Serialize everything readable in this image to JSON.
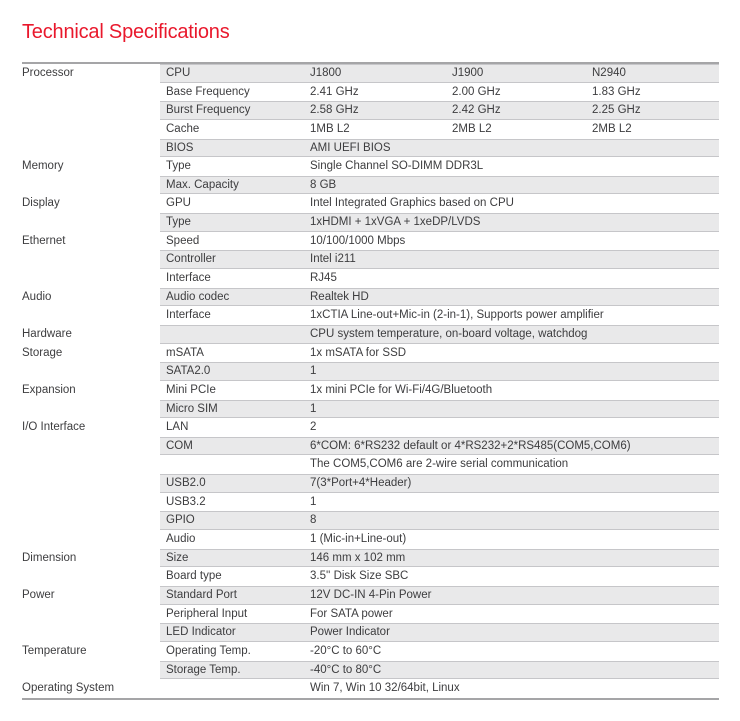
{
  "page": {
    "title": "Technical Specifications"
  },
  "colors": {
    "accent_red": "#e9182c",
    "row_stripe": "#e9e9ea",
    "row_divider": "#c6c6c9",
    "rule_gray": "#a5a5a7",
    "text": "#3d3d3f"
  },
  "table": {
    "rows": [
      {
        "category": "Processor",
        "label": "CPU",
        "values": [
          "J1800",
          "J1900",
          "N2940"
        ]
      },
      {
        "category": "",
        "label": "Base Frequency",
        "values": [
          "2.41 GHz",
          "2.00 GHz",
          "1.83 GHz"
        ]
      },
      {
        "category": "",
        "label": "Burst Frequency",
        "values": [
          "2.58 GHz",
          "2.42 GHz",
          "2.25 GHz"
        ]
      },
      {
        "category": "",
        "label": "Cache",
        "values": [
          "1MB L2",
          "2MB L2",
          "2MB L2"
        ]
      },
      {
        "category": "",
        "label": "BIOS",
        "value": "AMI UEFI BIOS"
      },
      {
        "category": "Memory",
        "label": "Type",
        "value": "Single Channel SO-DIMM DDR3L"
      },
      {
        "category": "",
        "label": "Max. Capacity",
        "value": "8 GB"
      },
      {
        "category": "Display",
        "label": "GPU",
        "value": "Intel Integrated Graphics based on CPU"
      },
      {
        "category": "",
        "label": "Type",
        "value": "1xHDMI + 1xVGA + 1xeDP/LVDS"
      },
      {
        "category": "Ethernet",
        "label": "Speed",
        "value": "10/100/1000 Mbps"
      },
      {
        "category": "",
        "label": "Controller",
        "value": "Intel i211"
      },
      {
        "category": "",
        "label": "Interface",
        "value": "RJ45"
      },
      {
        "category": "Audio",
        "label": "Audio codec",
        "value": "Realtek HD"
      },
      {
        "category": "",
        "label": "Interface",
        "value": "1xCTIA Line-out+Mic-in (2-in-1), Supports power amplifier"
      },
      {
        "category": "Hardware",
        "label": "",
        "value": "CPU system temperature, on-board voltage, watchdog"
      },
      {
        "category": "Storage",
        "label": "mSATA",
        "value": "1x mSATA for SSD"
      },
      {
        "category": "",
        "label": "SATA2.0",
        "value": "1"
      },
      {
        "category": "Expansion",
        "label": "Mini PCIe",
        "value": "1x mini PCIe for Wi-Fi/4G/Bluetooth"
      },
      {
        "category": "",
        "label": "Micro SIM",
        "value": "1"
      },
      {
        "category": "I/O Interface",
        "label": "LAN",
        "value": "2"
      },
      {
        "category": "",
        "label": "COM",
        "value": "6*COM: 6*RS232 default or 4*RS232+2*RS485(COM5,COM6)"
      },
      {
        "category": "",
        "label": "",
        "value": "The COM5,COM6 are 2-wire serial communication"
      },
      {
        "category": "",
        "label": "USB2.0",
        "value": "7(3*Port+4*Header)"
      },
      {
        "category": "",
        "label": "USB3.2",
        "value": "1"
      },
      {
        "category": "",
        "label": "GPIO",
        "value": "8"
      },
      {
        "category": "",
        "label": "Audio",
        "value": "1 (Mic-in+Line-out)"
      },
      {
        "category": "Dimension",
        "label": "Size",
        "value": "146 mm x 102 mm"
      },
      {
        "category": "",
        "label": "Board type",
        "value": "3.5'' Disk Size SBC"
      },
      {
        "category": "Power",
        "label": "Standard Port",
        "value": "12V DC-IN 4-Pin Power"
      },
      {
        "category": "",
        "label": "Peripheral Input",
        "value": "For SATA power"
      },
      {
        "category": "",
        "label": "LED Indicator",
        "value": "Power Indicator"
      },
      {
        "category": "Temperature",
        "label": "Operating Temp.",
        "value": "-20°C to 60°C"
      },
      {
        "category": "",
        "label": "Storage Temp.",
        "value": "-40°C to 80°C"
      },
      {
        "category": "Operating System",
        "label": "",
        "value": "Win 7, Win 10 32/64bit, Linux"
      }
    ]
  }
}
